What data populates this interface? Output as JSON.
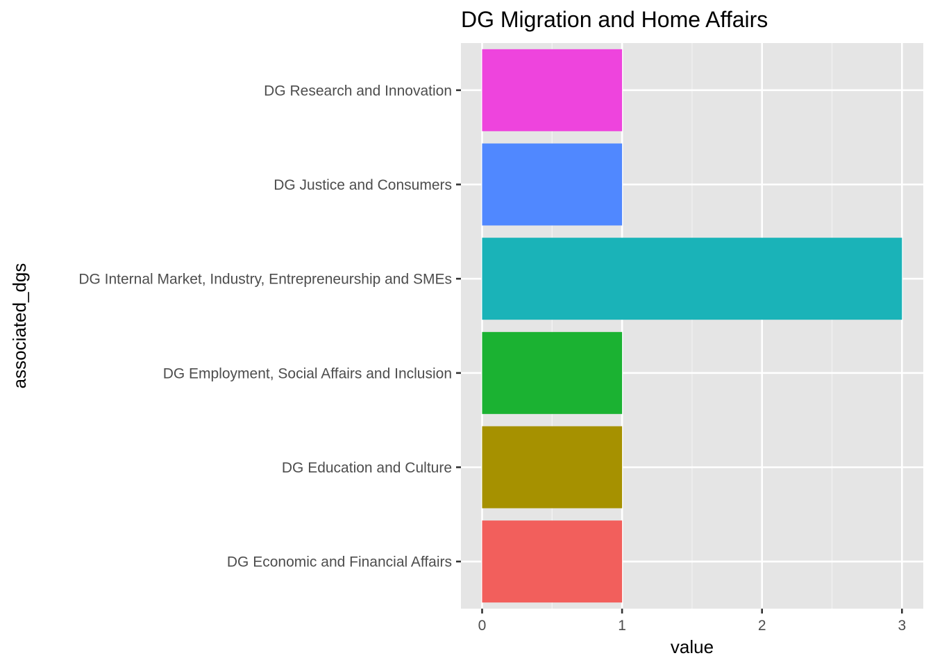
{
  "chart_data": {
    "type": "bar",
    "orientation": "horizontal",
    "title": "DG Migration and Home Affairs",
    "xlabel": "value",
    "ylabel": "associated_dgs",
    "categories": [
      "DG Economic and Financial Affairs",
      "DG Education and Culture",
      "DG Employment, Social Affairs and Inclusion",
      "DG Internal Market, Industry, Entrepreneurship and SMEs",
      "DG Justice and Consumers",
      "DG Research and Innovation"
    ],
    "values": [
      1,
      1,
      1,
      3,
      1,
      1
    ],
    "colors": [
      "#F25F5C",
      "#A69100",
      "#1BB232",
      "#1AB3B8",
      "#5088FF",
      "#EE44DD"
    ],
    "xlim": [
      0,
      3
    ],
    "xticks": [
      "0",
      "1",
      "2",
      "3"
    ],
    "grid": true,
    "background": "#E5E5E5",
    "legend": "none"
  }
}
